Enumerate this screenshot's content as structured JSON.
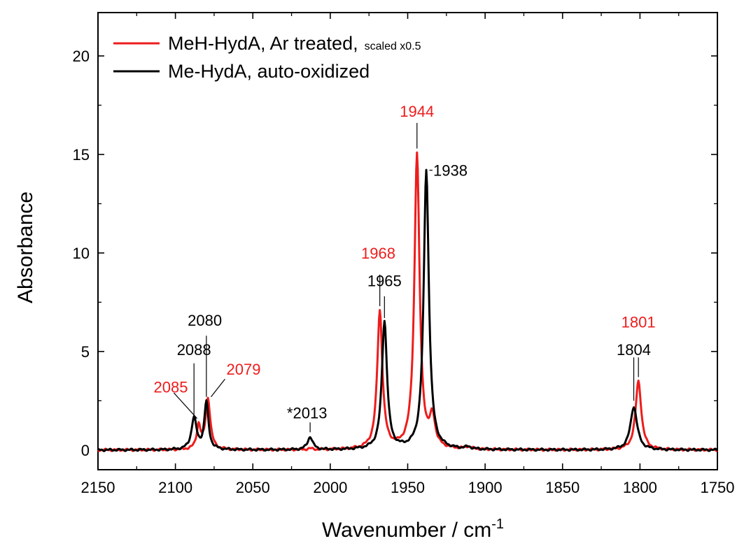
{
  "chart_data": {
    "type": "line",
    "xlabel": "Wavenumber / cm",
    "xlabel_sup": "-1",
    "ylabel": "Absorbance",
    "xlim": [
      2150,
      1750
    ],
    "ylim": [
      -1,
      22.2
    ],
    "x_ticks": [
      2150,
      2100,
      2050,
      2000,
      1950,
      1900,
      1850,
      1800,
      1750
    ],
    "y_ticks": [
      0,
      5,
      10,
      15,
      20
    ],
    "grid": false,
    "legend_position": "top-left",
    "series": [
      {
        "name": "MeH-HydA, Ar treated,",
        "name_suffix": "scaled x0.5",
        "color": "#ee1c1c",
        "peaks": [
          {
            "x": 2085,
            "y": 1.2,
            "w": 1.5
          },
          {
            "x": 2079,
            "y": 2.6,
            "w": 1.8
          },
          {
            "x": 2013,
            "y": 0.05,
            "w": 2.0
          },
          {
            "x": 1968,
            "y": 7.0,
            "w": 2.0
          },
          {
            "x": 1944,
            "y": 15.0,
            "w": 2.0
          },
          {
            "x": 1934,
            "y": 1.5,
            "w": 2.0
          },
          {
            "x": 1911,
            "y": 0.12,
            "w": 2.5
          },
          {
            "x": 1801,
            "y": 3.5,
            "w": 2.2
          }
        ]
      },
      {
        "name": "Me-HydA, auto-oxidized",
        "color": "#000000",
        "peaks": [
          {
            "x": 2088,
            "y": 1.6,
            "w": 2.0
          },
          {
            "x": 2080,
            "y": 2.4,
            "w": 1.6
          },
          {
            "x": 2013,
            "y": 0.65,
            "w": 2.0
          },
          {
            "x": 1965,
            "y": 6.5,
            "w": 2.0
          },
          {
            "x": 1938,
            "y": 14.2,
            "w": 2.0
          },
          {
            "x": 1911,
            "y": 0.1,
            "w": 2.5
          },
          {
            "x": 1804,
            "y": 2.2,
            "w": 2.6
          }
        ]
      }
    ],
    "annotations": [
      {
        "text": "1944",
        "color": "#ee1c1c",
        "line": [
          [
            1944,
            15.3
          ],
          [
            1944,
            16.6
          ]
        ],
        "tx": 1944,
        "ty": 17.2,
        "anchor": "middle"
      },
      {
        "text": "1938",
        "color": "#000000",
        "line": [
          [
            1936,
            14.2
          ],
          [
            1934,
            14.2
          ]
        ],
        "tx": 1933.5,
        "ty": 14.2,
        "anchor": "start"
      },
      {
        "text": "1968",
        "color": "#ee1c1c",
        "line": [
          [
            1968,
            7.3
          ],
          [
            1968,
            8.9
          ]
        ],
        "tx": 1969,
        "ty": 10.0,
        "anchor": "middle"
      },
      {
        "text": "1965",
        "color": "#000000",
        "line": [
          [
            1965,
            6.7
          ],
          [
            1965,
            7.8
          ]
        ],
        "tx": 1965,
        "ty": 8.6,
        "anchor": "middle"
      },
      {
        "text": "1801",
        "color": "#ee1c1c",
        "line": [
          [
            1801,
            3.7
          ],
          [
            1801,
            4.7
          ]
        ],
        "tx": 1801,
        "ty": 6.5,
        "anchor": "middle"
      },
      {
        "text": "1804",
        "color": "#000000",
        "line": [
          [
            1804,
            2.5
          ],
          [
            1804,
            4.7
          ]
        ],
        "tx": 1804,
        "ty": 5.1,
        "anchor": "middle"
      },
      {
        "text": "2080",
        "color": "#000000",
        "line": [
          [
            2080,
            2.7
          ],
          [
            2080,
            5.8
          ]
        ],
        "tx": 2081,
        "ty": 6.6,
        "anchor": "middle"
      },
      {
        "text": "2088",
        "color": "#000000",
        "line": [
          [
            2088,
            1.8
          ],
          [
            2088,
            4.4
          ]
        ],
        "tx": 2088,
        "ty": 5.1,
        "anchor": "middle"
      },
      {
        "text": "2085",
        "color": "#ee1c1c",
        "line": [
          [
            2086,
            1.6
          ],
          [
            2101,
            2.9
          ]
        ],
        "tx": 2103,
        "ty": 3.2,
        "anchor": "middle"
      },
      {
        "text": "2079",
        "color": "#ee1c1c",
        "line": [
          [
            2077,
            2.7
          ],
          [
            2068,
            3.6
          ]
        ],
        "tx": 2056,
        "ty": 4.1,
        "anchor": "middle"
      },
      {
        "text": "*2013",
        "color": "#000000",
        "line": [
          [
            2013,
            0.9
          ],
          [
            2013,
            1.4
          ]
        ],
        "tx": 2015,
        "ty": 1.9,
        "anchor": "middle"
      }
    ]
  }
}
